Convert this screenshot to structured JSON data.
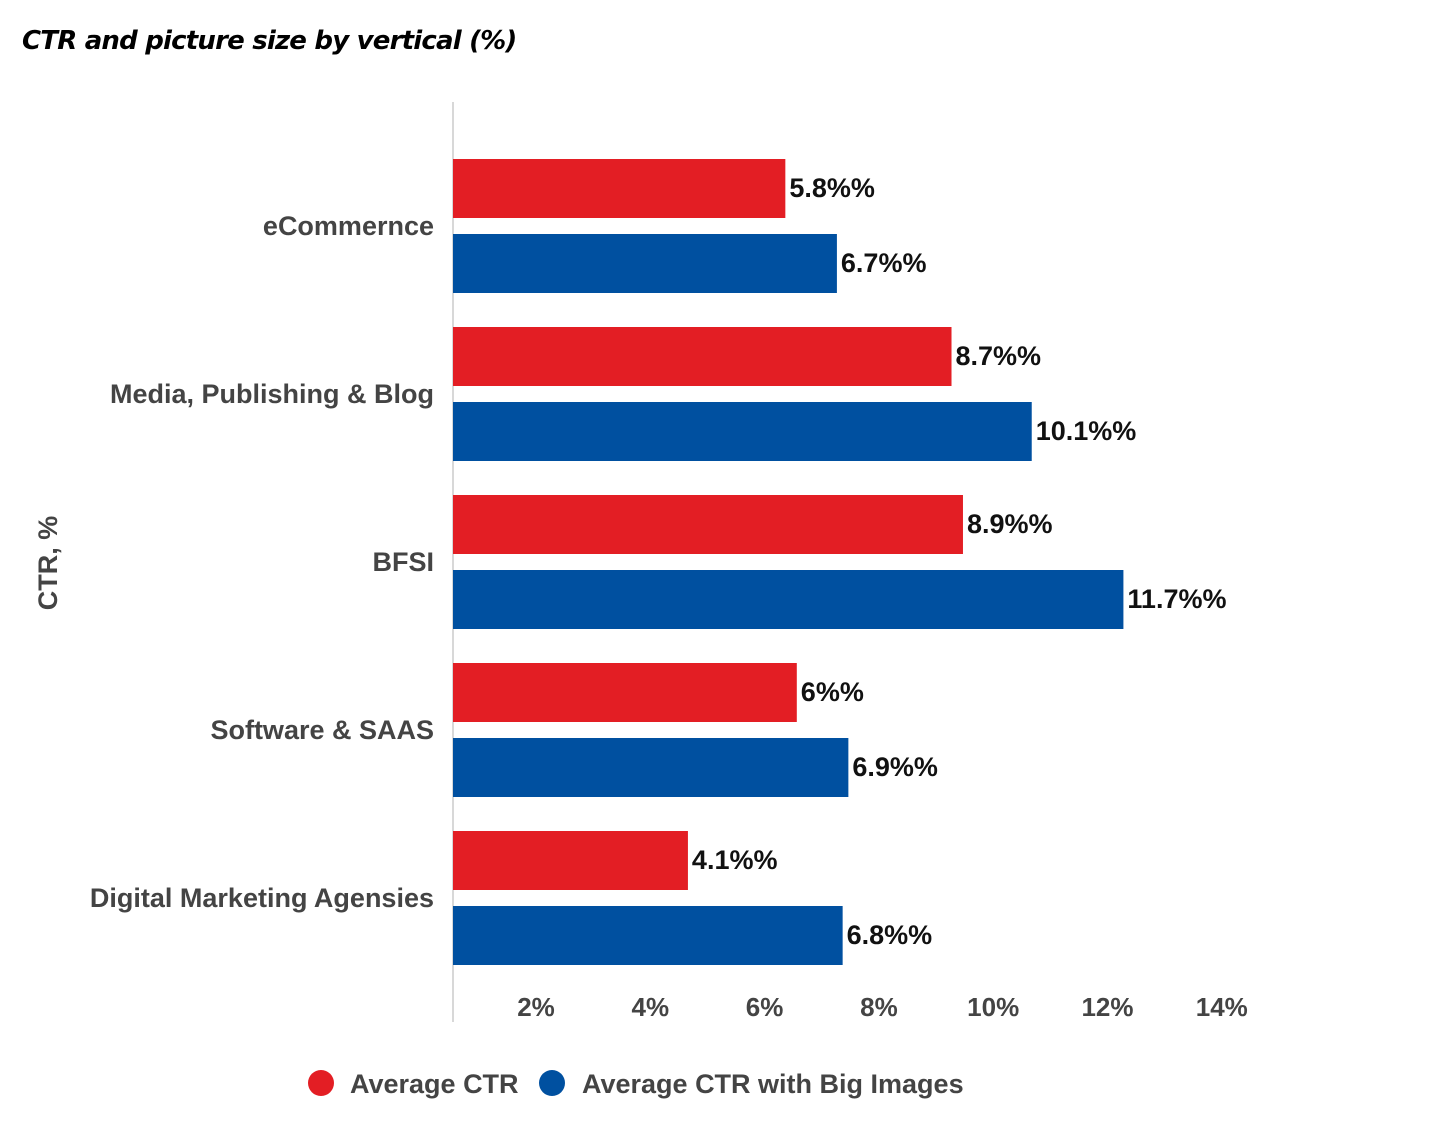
{
  "chart_data": {
    "type": "bar",
    "orientation": "horizontal",
    "title": "CTR and picture size by vertical (%)",
    "ylabel": "CTR, %",
    "xlabel": "",
    "categories": [
      "eCommernce",
      "Media, Publishing & Blog",
      "BFSI",
      "Software & SAAS",
      "Digital Marketing Agensies"
    ],
    "series": [
      {
        "name": "Average CTR",
        "color": "#e31e24",
        "values": [
          5.8,
          8.7,
          8.9,
          6.0,
          4.1
        ],
        "labels": [
          "5.8%%",
          "8.7%%",
          "8.9%%",
          "6%%",
          "4.1%%"
        ]
      },
      {
        "name": "Average CTR with Big Images",
        "color": "#0050a0",
        "values": [
          6.7,
          10.1,
          11.7,
          6.9,
          6.8
        ],
        "labels": [
          "6.7%%",
          "10.1%%",
          "11.7%%",
          "6.9%%",
          "6.8%%"
        ]
      }
    ],
    "xticks": [
      "2%",
      "4%",
      "6%",
      "8%",
      "10%",
      "12%",
      "14%"
    ],
    "xlim": [
      0,
      14
    ],
    "grid": false,
    "legend_position": "bottom"
  }
}
